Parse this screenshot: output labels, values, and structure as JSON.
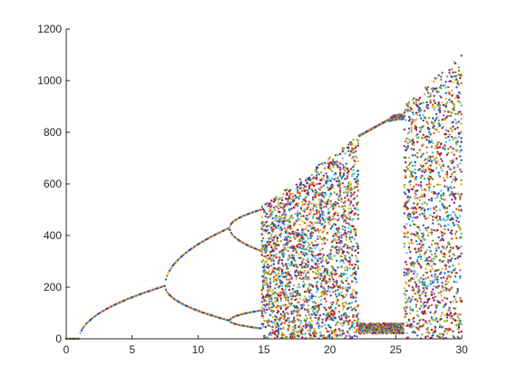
{
  "chart_data": {
    "type": "scatter",
    "title": "",
    "xlabel": "",
    "ylabel": "",
    "xlim": [
      0,
      30
    ],
    "ylim": [
      0,
      1200
    ],
    "x_ticks": [
      0,
      5,
      10,
      15,
      20,
      25,
      30
    ],
    "y_ticks": [
      0,
      200,
      400,
      600,
      800,
      1000,
      1200
    ],
    "x_tick_labels": [
      "0",
      "5",
      "10",
      "15",
      "20",
      "25",
      "30"
    ],
    "y_tick_labels": [
      "0",
      "200",
      "400",
      "600",
      "800",
      "1000",
      "1200"
    ],
    "grid": false,
    "legend": "none",
    "description_of_series": "bifurcation scatter; each x column has many colored points",
    "branches": {
      "zero_until": 1.0,
      "single_branch_end": 7.5,
      "single_branch_value_at_end": 205,
      "period2_end": 12.4,
      "period2_upper_at_end": 430,
      "period2_lower_at_end": 70,
      "period4_end": 14.8,
      "chaos_start": 14.8,
      "upper_envelope": [
        [
          14.5,
          500
        ],
        [
          22,
          780
        ],
        [
          24.5,
          850
        ],
        [
          30,
          1100
        ]
      ],
      "window_start": 22.2,
      "window_end": 25.6,
      "window_upper": 840,
      "window_lower": 20
    },
    "colors": [
      "#0072BD",
      "#D95319",
      "#EDB120",
      "#7E2F8E",
      "#77AC30",
      "#4DBEEE",
      "#A2142F"
    ]
  }
}
